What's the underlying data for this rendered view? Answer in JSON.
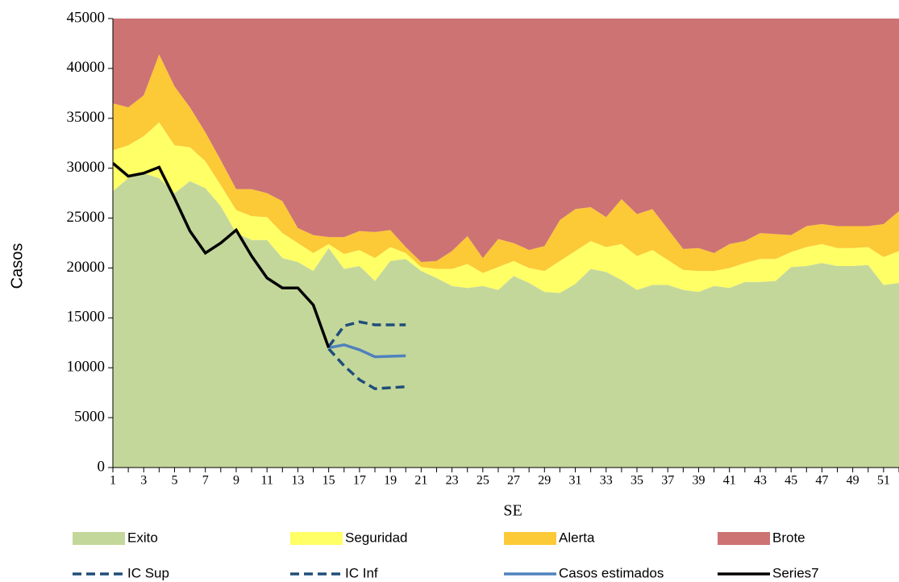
{
  "chart_data": {
    "type": "area",
    "x_label": "SE",
    "y_label": "Casos",
    "x": [
      1,
      2,
      3,
      4,
      5,
      6,
      7,
      8,
      9,
      10,
      11,
      12,
      13,
      14,
      15,
      16,
      17,
      18,
      19,
      20,
      21,
      22,
      23,
      24,
      25,
      26,
      27,
      28,
      29,
      30,
      31,
      32,
      33,
      34,
      35,
      36,
      37,
      38,
      39,
      40,
      41,
      42,
      43,
      44,
      45,
      46,
      47,
      48,
      49,
      50,
      51,
      52
    ],
    "xlim": [
      1,
      52
    ],
    "xticks": [
      1,
      3,
      5,
      7,
      9,
      11,
      13,
      15,
      17,
      19,
      21,
      23,
      25,
      27,
      29,
      31,
      33,
      35,
      37,
      39,
      41,
      43,
      45,
      47,
      49,
      51
    ],
    "ylim": [
      0,
      45000
    ],
    "yticks": [
      0,
      5000,
      10000,
      15000,
      20000,
      25000,
      30000,
      35000,
      40000,
      45000
    ],
    "series": [
      {
        "name": "Exito",
        "type": "area",
        "color": "#c4d79b",
        "values": [
          27700,
          29000,
          29500,
          29000,
          27500,
          28700,
          28000,
          26200,
          23500,
          22800,
          22800,
          21000,
          20600,
          19700,
          22000,
          19900,
          20200,
          18700,
          20700,
          20900,
          19700,
          19000,
          18200,
          18000,
          18200,
          17800,
          19200,
          18500,
          17600,
          17500,
          18400,
          19900,
          19600,
          18800,
          17800,
          18300,
          18300,
          17800,
          17600,
          18200,
          18000,
          18600,
          18600,
          18700,
          20100,
          20200,
          20500,
          20200,
          20200,
          20300,
          18300,
          18500
        ]
      },
      {
        "name": "Seguridad",
        "type": "area",
        "color": "#ffff66",
        "values": [
          4100,
          3300,
          3700,
          5600,
          4800,
          3400,
          2700,
          2100,
          2300,
          2400,
          2300,
          2500,
          1900,
          1800,
          400,
          1500,
          1600,
          2300,
          1400,
          600,
          400,
          900,
          1700,
          2400,
          1300,
          2300,
          1500,
          1500,
          2100,
          3200,
          3300,
          2800,
          2500,
          3600,
          3400,
          3500,
          2500,
          2000,
          2100,
          1500,
          2000,
          1900,
          2300,
          2200,
          1500,
          1900,
          1900,
          1800,
          1800,
          1800,
          2800,
          3200
        ]
      },
      {
        "name": "Alerta",
        "type": "area",
        "color": "#fcc937",
        "values": [
          4700,
          3800,
          4100,
          6800,
          5900,
          4000,
          2900,
          2500,
          2100,
          2700,
          2400,
          3200,
          1500,
          1800,
          700,
          1700,
          1900,
          2600,
          1700,
          600,
          500,
          800,
          1800,
          2800,
          1500,
          2800,
          1800,
          1800,
          2500,
          4100,
          4200,
          3400,
          3000,
          4500,
          4200,
          4100,
          3100,
          2100,
          2300,
          1800,
          2400,
          2200,
          2600,
          2500,
          1700,
          2100,
          2000,
          2200,
          2200,
          2100,
          3300,
          4000
        ]
      },
      {
        "name": "Brote",
        "type": "area",
        "color": "#cd7373",
        "values": [
          8500,
          8900,
          7700,
          3600,
          6800,
          8900,
          11400,
          14200,
          17100,
          17100,
          17500,
          18300,
          21000,
          21700,
          21900,
          21900,
          21300,
          21400,
          21200,
          22900,
          24400,
          24300,
          23300,
          21800,
          24000,
          22100,
          22500,
          23200,
          22800,
          20200,
          19100,
          18900,
          19900,
          18100,
          19600,
          19100,
          21100,
          23100,
          23000,
          23500,
          22600,
          22300,
          21500,
          21600,
          21700,
          20800,
          20600,
          20800,
          20800,
          20800,
          20600,
          19300
        ]
      },
      {
        "name": "IC Sup",
        "type": "line",
        "dash": true,
        "color": "#1f4e79",
        "values": [
          null,
          null,
          null,
          null,
          null,
          null,
          null,
          null,
          null,
          null,
          null,
          null,
          null,
          null,
          12100,
          14200,
          14600,
          14300,
          14300,
          14300,
          null,
          null,
          null,
          null,
          null,
          null,
          null,
          null,
          null,
          null,
          null,
          null,
          null,
          null,
          null,
          null,
          null,
          null,
          null,
          null,
          null,
          null,
          null,
          null,
          null,
          null,
          null,
          null,
          null,
          null,
          null,
          null
        ]
      },
      {
        "name": "IC Inf",
        "type": "line",
        "dash": true,
        "color": "#1f4e79",
        "values": [
          null,
          null,
          null,
          null,
          null,
          null,
          null,
          null,
          null,
          null,
          null,
          null,
          null,
          null,
          11900,
          10200,
          8800,
          7900,
          8000,
          8100,
          null,
          null,
          null,
          null,
          null,
          null,
          null,
          null,
          null,
          null,
          null,
          null,
          null,
          null,
          null,
          null,
          null,
          null,
          null,
          null,
          null,
          null,
          null,
          null,
          null,
          null,
          null,
          null,
          null,
          null,
          null,
          null
        ]
      },
      {
        "name": "Casos estimados",
        "type": "line",
        "dash": false,
        "color": "#4f81bd",
        "values": [
          null,
          null,
          null,
          null,
          null,
          null,
          null,
          null,
          null,
          null,
          null,
          null,
          null,
          null,
          12000,
          12300,
          11800,
          11100,
          11150,
          11200,
          null,
          null,
          null,
          null,
          null,
          null,
          null,
          null,
          null,
          null,
          null,
          null,
          null,
          null,
          null,
          null,
          null,
          null,
          null,
          null,
          null,
          null,
          null,
          null,
          null,
          null,
          null,
          null,
          null,
          null,
          null,
          null
        ]
      },
      {
        "name": "Series7",
        "type": "line",
        "dash": false,
        "color": "#000000",
        "values": [
          30500,
          29200,
          29500,
          30100,
          27000,
          23700,
          21500,
          22500,
          23800,
          21200,
          19000,
          18000,
          18000,
          16300,
          12000,
          null,
          null,
          null,
          null,
          null,
          null,
          null,
          null,
          null,
          null,
          null,
          null,
          null,
          null,
          null,
          null,
          null,
          null,
          null,
          null,
          null,
          null,
          null,
          null,
          null,
          null,
          null,
          null,
          null,
          null,
          null,
          null,
          null,
          null,
          null,
          null,
          null
        ]
      }
    ]
  }
}
